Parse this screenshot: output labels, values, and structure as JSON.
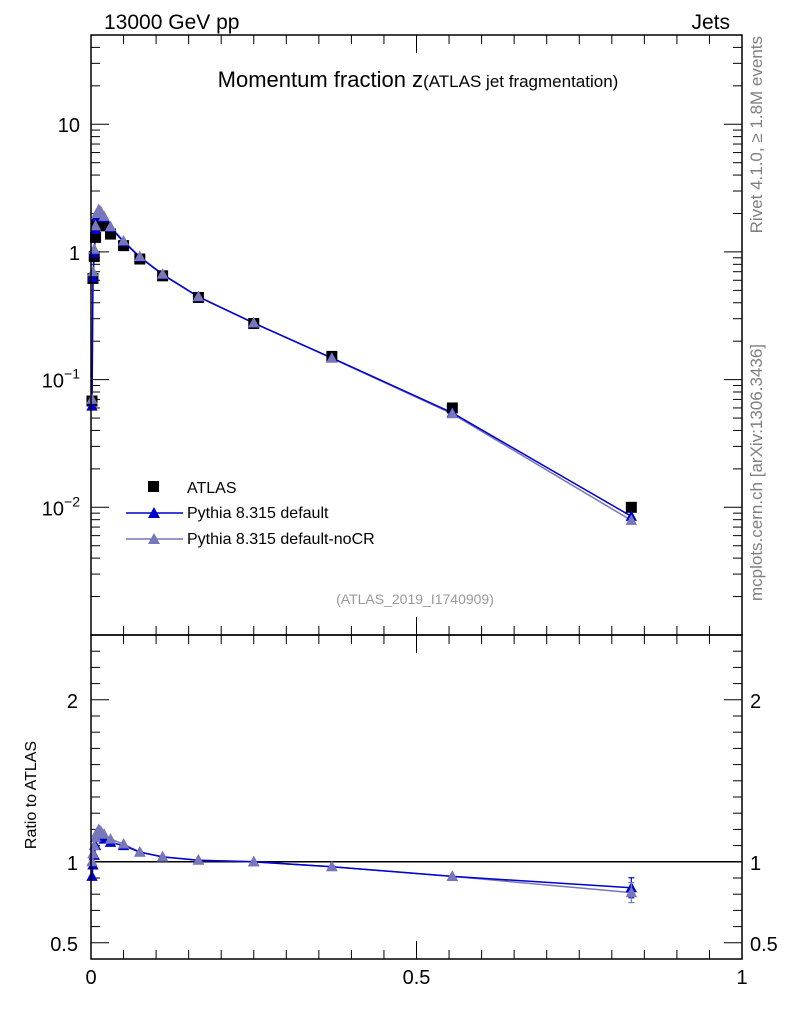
{
  "header": {
    "left": "13000 GeV pp",
    "right": "Jets"
  },
  "side": {
    "rivet": "Rivet 4.1.0, ≥ 1.8M events",
    "mcplots": "mcplots.cern.ch [arXiv:1306.3436]"
  },
  "chart_data": {
    "type": "scatter",
    "title_main": "Momentum fraction z",
    "title_sub": "(ATLAS jet fragmentation)",
    "analysis_id": "(ATLAS_2019_I1740909)",
    "yscale": "log",
    "xlim": [
      0,
      1
    ],
    "ylim": [
      0.001,
      50
    ],
    "y_ticks": [
      {
        "value": 0.01,
        "base": "10",
        "exp": "−2"
      },
      {
        "value": 0.1,
        "base": "10",
        "exp": "−1"
      },
      {
        "value": 1,
        "base": "1",
        "exp": ""
      },
      {
        "value": 10,
        "base": "10",
        "exp": ""
      }
    ],
    "x_ticks": [
      {
        "value": 0,
        "label": "0"
      },
      {
        "value": 0.5,
        "label": "0.5"
      },
      {
        "value": 1,
        "label": "1"
      }
    ],
    "legend_position": "lower-left",
    "series": [
      {
        "name": "ATLAS",
        "style": "marker",
        "marker": "square",
        "color": "#000000",
        "x": [
          0.0015,
          0.003,
          0.005,
          0.007,
          0.009,
          0.012,
          0.015,
          0.02,
          0.03,
          0.05,
          0.075,
          0.11,
          0.165,
          0.25,
          0.37,
          0.555,
          0.83
        ],
        "y": [
          0.068,
          0.62,
          0.92,
          1.3,
          1.62,
          1.78,
          1.72,
          1.6,
          1.38,
          1.12,
          0.88,
          0.65,
          0.44,
          0.275,
          0.152,
          0.06,
          0.01
        ]
      },
      {
        "name": "Pythia 8.315 default",
        "style": "line+marker",
        "marker": "triangle",
        "color": "#0000cc",
        "x": [
          0.0015,
          0.003,
          0.005,
          0.007,
          0.009,
          0.012,
          0.015,
          0.02,
          0.03,
          0.05,
          0.075,
          0.11,
          0.165,
          0.25,
          0.37,
          0.555,
          0.83
        ],
        "y": [
          0.062,
          0.63,
          0.98,
          1.5,
          1.9,
          2.05,
          2.0,
          1.85,
          1.55,
          1.2,
          0.91,
          0.665,
          0.445,
          0.277,
          0.148,
          0.055,
          0.0085
        ]
      },
      {
        "name": "Pythia 8.315 default-noCR",
        "style": "line+marker",
        "marker": "triangle",
        "color": "#7777bb",
        "x": [
          0.0015,
          0.003,
          0.005,
          0.007,
          0.009,
          0.012,
          0.015,
          0.02,
          0.03,
          0.05,
          0.075,
          0.11,
          0.165,
          0.25,
          0.37,
          0.555,
          0.83
        ],
        "y": [
          0.07,
          0.7,
          1.05,
          1.6,
          2.0,
          2.15,
          2.08,
          1.9,
          1.58,
          1.22,
          0.92,
          0.67,
          0.447,
          0.278,
          0.147,
          0.054,
          0.0079
        ]
      }
    ],
    "ratio": {
      "ylabel": "Ratio to ATLAS",
      "ylim": [
        0.4,
        2.4
      ],
      "y_ticks": [
        {
          "value": 0.5,
          "label": "0.5"
        },
        {
          "value": 1,
          "label": "1"
        },
        {
          "value": 2,
          "label": "2"
        }
      ],
      "reference": 1,
      "series": [
        {
          "name": "Pythia 8.315 default",
          "color": "#0000cc",
          "x": [
            0.0015,
            0.003,
            0.005,
            0.007,
            0.009,
            0.012,
            0.015,
            0.02,
            0.03,
            0.05,
            0.075,
            0.11,
            0.165,
            0.25,
            0.37,
            0.555,
            0.83
          ],
          "y": [
            0.91,
            0.98,
            1.04,
            1.1,
            1.15,
            1.16,
            1.15,
            1.14,
            1.12,
            1.1,
            1.06,
            1.03,
            1.01,
            1.0,
            0.97,
            0.91,
            0.84
          ]
        },
        {
          "name": "Pythia 8.315 default-noCR",
          "color": "#7777bb",
          "x": [
            0.0015,
            0.003,
            0.005,
            0.007,
            0.009,
            0.012,
            0.015,
            0.02,
            0.03,
            0.05,
            0.075,
            0.11,
            0.165,
            0.25,
            0.37,
            0.555,
            0.83
          ],
          "y": [
            1.0,
            1.05,
            1.1,
            1.15,
            1.18,
            1.2,
            1.19,
            1.17,
            1.14,
            1.11,
            1.06,
            1.03,
            1.01,
            1.0,
            0.97,
            0.91,
            0.81
          ]
        }
      ]
    }
  }
}
